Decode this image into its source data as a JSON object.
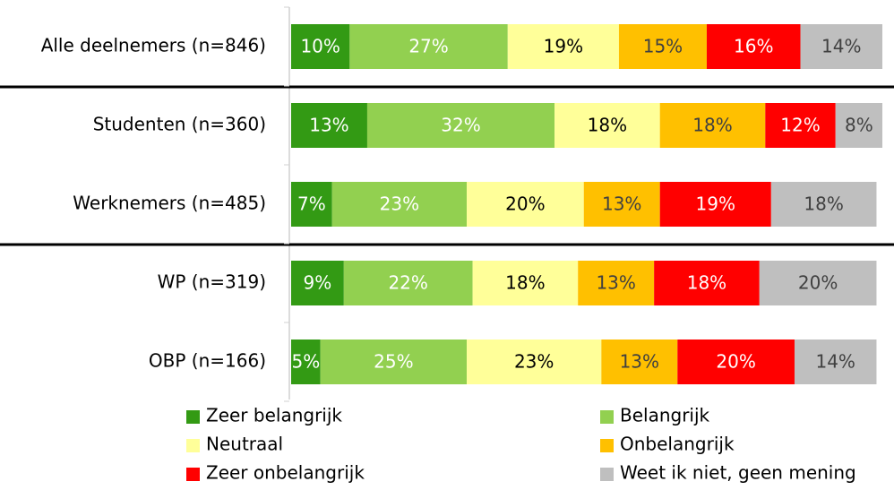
{
  "chart_data": {
    "type": "stacked-bar-horizontal",
    "categories": [
      "Alle deelnemers (n=846)",
      "Studenten (n=360)",
      "Werknemers (n=485)",
      "WP (n=319)",
      "OBP (n=166)"
    ],
    "xlim": [
      0,
      101
    ],
    "series": [
      {
        "name": "Zeer belangrijk",
        "color": "#339a14",
        "label_color": "#ffffff",
        "values": [
          10,
          13,
          7,
          9,
          5
        ],
        "value_labels": [
          "10%",
          "13%",
          "7%",
          "9%",
          "5%"
        ]
      },
      {
        "name": "Belangrijk",
        "color": "#92d050",
        "label_color": "#ffffff",
        "values": [
          27,
          32,
          23,
          22,
          25
        ],
        "value_labels": [
          "27%",
          "32%",
          "23%",
          "22%",
          "25%"
        ]
      },
      {
        "name": "Neutraal",
        "color": "#ffff99",
        "label_color": "#000000",
        "values": [
          19,
          18,
          20,
          18,
          23
        ],
        "value_labels": [
          "19%",
          "18%",
          "20%",
          "18%",
          "23%"
        ]
      },
      {
        "name": "Onbelangrijk",
        "color": "#ffc000",
        "label_color": "#404040",
        "values": [
          15,
          18,
          13,
          13,
          13
        ],
        "value_labels": [
          "15%",
          "18%",
          "13%",
          "13%",
          "13%"
        ]
      },
      {
        "name": "Zeer onbelangrijk",
        "color": "#ff0000",
        "label_color": "#ffffff",
        "values": [
          16,
          12,
          19,
          18,
          20
        ],
        "value_labels": [
          "16%",
          "12%",
          "19%",
          "18%",
          "20%"
        ]
      },
      {
        "name": "Weet ik niet, geen mening",
        "color": "#bfbfbf",
        "label_color": "#404040",
        "values": [
          14,
          8,
          18,
          20,
          14
        ],
        "value_labels": [
          "14%",
          "8%",
          "18%",
          "20%",
          "14%"
        ]
      }
    ]
  }
}
